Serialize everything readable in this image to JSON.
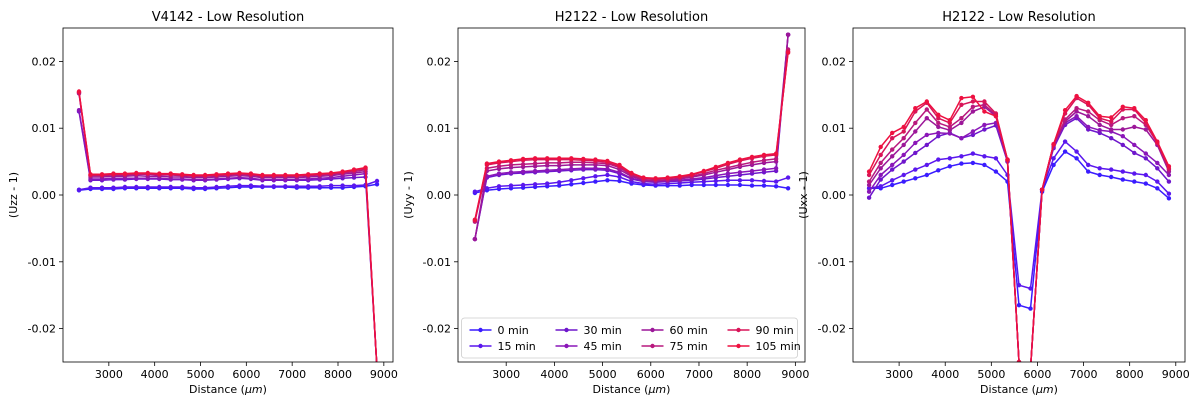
{
  "series_style": {
    "names": [
      "0 min",
      "15 min",
      "30 min",
      "45 min",
      "60 min",
      "75 min",
      "90 min",
      "105 min"
    ],
    "colors": [
      "#3a1cff",
      "#5a17ee",
      "#6e16cc",
      "#8a16b8",
      "#9c1799",
      "#b8187e",
      "#d81458",
      "#ee1040"
    ]
  },
  "chart_data": [
    {
      "type": "line",
      "title": "V4142 - Low Resolution",
      "xlabel": "Distance ($\\mu m$)",
      "ylabel": "(Uzz - 1)",
      "xlim": [
        2000,
        9200
      ],
      "ylim": [
        -0.025,
        0.025
      ],
      "xticks": [
        3000,
        4000,
        5000,
        6000,
        7000,
        8000,
        9000
      ],
      "yticks": [
        -0.02,
        -0.01,
        0.0,
        0.01,
        0.02
      ],
      "grid": false,
      "x": [
        2350,
        2600,
        2850,
        3100,
        3350,
        3600,
        3850,
        4100,
        4350,
        4600,
        4850,
        5100,
        5350,
        5600,
        5850,
        6100,
        6350,
        6600,
        6850,
        7100,
        7350,
        7600,
        7850,
        8100,
        8350,
        8600,
        8850
      ],
      "series": [
        {
          "name": "0 min",
          "values": [
            0.0007,
            0.0009,
            0.0009,
            0.0009,
            0.001,
            0.001,
            0.001,
            0.001,
            0.001,
            0.001,
            0.0009,
            0.0009,
            0.001,
            0.0011,
            0.0012,
            0.0012,
            0.0012,
            0.0012,
            0.0012,
            0.0011,
            0.0011,
            0.0011,
            0.0011,
            0.0011,
            0.0012,
            0.0013,
            0.0016
          ]
        },
        {
          "name": "15 min",
          "values": [
            0.0008,
            0.0011,
            0.0011,
            0.0011,
            0.0012,
            0.0012,
            0.0012,
            0.0012,
            0.0012,
            0.0012,
            0.0011,
            0.0011,
            0.0012,
            0.0013,
            0.0014,
            0.0014,
            0.0013,
            0.0013,
            0.0013,
            0.0013,
            0.0013,
            0.0013,
            0.0014,
            0.0014,
            0.0014,
            0.0015,
            0.0021
          ]
        },
        {
          "name": "30 min",
          "values": [
            0.0125,
            0.0022,
            0.0022,
            0.0023,
            0.0023,
            0.0024,
            0.0024,
            0.0024,
            0.0023,
            0.0023,
            0.0022,
            0.0022,
            0.0023,
            0.0024,
            0.0025,
            0.0024,
            0.0022,
            0.0022,
            0.0022,
            0.0022,
            0.0022,
            0.0023,
            0.0024,
            0.0025,
            0.0026,
            0.0027,
            -0.026
          ]
        },
        {
          "name": "45 min",
          "values": [
            0.0127,
            0.0024,
            0.0024,
            0.0025,
            0.0025,
            0.0025,
            0.0025,
            0.0025,
            0.0024,
            0.0024,
            0.0023,
            0.0023,
            0.0024,
            0.0025,
            0.0026,
            0.0025,
            0.0023,
            0.0023,
            0.0023,
            0.0023,
            0.0024,
            0.0025,
            0.0026,
            0.0028,
            0.003,
            0.0032,
            -0.026
          ]
        },
        {
          "name": "60 min",
          "values": [
            0.0152,
            0.0027,
            0.0027,
            0.0028,
            0.0028,
            0.0029,
            0.0028,
            0.0028,
            0.0027,
            0.0027,
            0.0026,
            0.0026,
            0.0027,
            0.0028,
            0.0029,
            0.0028,
            0.0026,
            0.0026,
            0.0026,
            0.0026,
            0.0027,
            0.0028,
            0.0029,
            0.0031,
            0.0033,
            0.0035,
            -0.026
          ]
        },
        {
          "name": "75 min",
          "values": [
            0.0153,
            0.0029,
            0.0029,
            0.003,
            0.003,
            0.0031,
            0.0031,
            0.003,
            0.003,
            0.0029,
            0.0028,
            0.0028,
            0.0029,
            0.003,
            0.0031,
            0.003,
            0.0028,
            0.0028,
            0.0028,
            0.0028,
            0.0029,
            0.003,
            0.0031,
            0.0033,
            0.0035,
            0.0038,
            -0.026
          ]
        },
        {
          "name": "90 min",
          "values": [
            0.0154,
            0.003,
            0.003,
            0.0031,
            0.0031,
            0.0032,
            0.0032,
            0.0031,
            0.0031,
            0.003,
            0.0029,
            0.0029,
            0.003,
            0.0031,
            0.0032,
            0.0031,
            0.0029,
            0.0029,
            0.0029,
            0.0029,
            0.003,
            0.0031,
            0.0032,
            0.0034,
            0.0037,
            0.004,
            -0.026
          ]
        },
        {
          "name": "105 min",
          "values": [
            0.0155,
            0.0031,
            0.0031,
            0.0032,
            0.0032,
            0.0033,
            0.0033,
            0.0032,
            0.0032,
            0.0031,
            0.003,
            0.003,
            0.0031,
            0.0032,
            0.0033,
            0.0032,
            0.003,
            0.003,
            0.003,
            0.003,
            0.0031,
            0.0032,
            0.0033,
            0.0035,
            0.0038,
            0.0041,
            -0.026
          ]
        }
      ]
    },
    {
      "type": "line",
      "title": "H2122 - Low Resolution",
      "xlabel": "Distance ($\\mu m$)",
      "ylabel": "(Uyy - 1)",
      "xlim": [
        2000,
        9200
      ],
      "ylim": [
        -0.025,
        0.025
      ],
      "xticks": [
        3000,
        4000,
        5000,
        6000,
        7000,
        8000,
        9000
      ],
      "yticks": [
        -0.02,
        -0.01,
        0.0,
        0.01,
        0.02
      ],
      "grid": false,
      "legend": {
        "location": "lower center",
        "columns": 4
      },
      "x": [
        2350,
        2600,
        2850,
        3100,
        3350,
        3600,
        3850,
        4100,
        4350,
        4600,
        4850,
        5100,
        5350,
        5600,
        5850,
        6100,
        6350,
        6600,
        6850,
        7100,
        7350,
        7600,
        7850,
        8100,
        8350,
        8600,
        8850
      ],
      "series": [
        {
          "name": "0 min",
          "values": [
            0.0003,
            0.0007,
            0.0009,
            0.001,
            0.0011,
            0.0012,
            0.0013,
            0.0014,
            0.0016,
            0.0018,
            0.002,
            0.0022,
            0.0021,
            0.0017,
            0.0015,
            0.0014,
            0.0014,
            0.0014,
            0.0015,
            0.0015,
            0.0015,
            0.0015,
            0.0015,
            0.0014,
            0.0014,
            0.0013,
            0.001
          ]
        },
        {
          "name": "15 min",
          "values": [
            0.0005,
            0.001,
            0.0013,
            0.0014,
            0.0015,
            0.0016,
            0.0017,
            0.0019,
            0.0022,
            0.0025,
            0.0028,
            0.003,
            0.0027,
            0.002,
            0.0017,
            0.0016,
            0.0017,
            0.0018,
            0.0019,
            0.002,
            0.0021,
            0.0022,
            0.0022,
            0.0022,
            0.0021,
            0.002,
            0.0026
          ]
        },
        {
          "name": "30 min",
          "values": [
            -0.0066,
            0.0026,
            0.003,
            0.0032,
            0.0033,
            0.0034,
            0.0035,
            0.0036,
            0.0037,
            0.0038,
            0.0038,
            0.0037,
            0.0032,
            0.0024,
            0.002,
            0.0019,
            0.002,
            0.0021,
            0.0022,
            0.0024,
            0.0026,
            0.0028,
            0.003,
            0.0032,
            0.0034,
            0.0036,
            0.024
          ]
        },
        {
          "name": "45 min",
          "values": [
            -0.0066,
            0.0028,
            0.0032,
            0.0034,
            0.0035,
            0.0036,
            0.0037,
            0.0038,
            0.0039,
            0.004,
            0.004,
            0.0039,
            0.0034,
            0.0025,
            0.0021,
            0.002,
            0.0021,
            0.0022,
            0.0024,
            0.0026,
            0.0029,
            0.0032,
            0.0034,
            0.0036,
            0.0038,
            0.004,
            0.024
          ]
        },
        {
          "name": "60 min",
          "values": [
            -0.0066,
            0.0036,
            0.0039,
            0.0041,
            0.0042,
            0.0043,
            0.0044,
            0.0044,
            0.0045,
            0.0045,
            0.0045,
            0.0044,
            0.0038,
            0.0028,
            0.0022,
            0.0021,
            0.0022,
            0.0024,
            0.0027,
            0.003,
            0.0034,
            0.0038,
            0.0042,
            0.0045,
            0.0048,
            0.005,
            0.024
          ]
        },
        {
          "name": "75 min",
          "values": [
            -0.004,
            0.004,
            0.0043,
            0.0045,
            0.0046,
            0.0047,
            0.0048,
            0.0048,
            0.0049,
            0.0049,
            0.0048,
            0.0047,
            0.0041,
            0.003,
            0.0023,
            0.0022,
            0.0023,
            0.0025,
            0.0028,
            0.0032,
            0.0037,
            0.0041,
            0.0045,
            0.0049,
            0.0052,
            0.0054,
            0.0218
          ]
        },
        {
          "name": "90 min",
          "values": [
            -0.0038,
            0.0045,
            0.0048,
            0.005,
            0.0052,
            0.0053,
            0.0053,
            0.0053,
            0.0053,
            0.0052,
            0.0051,
            0.0049,
            0.0043,
            0.0032,
            0.0025,
            0.0024,
            0.0025,
            0.0027,
            0.003,
            0.0035,
            0.004,
            0.0046,
            0.0051,
            0.0055,
            0.0058,
            0.006,
            0.0215
          ]
        },
        {
          "name": "105 min",
          "values": [
            -0.0037,
            0.0047,
            0.005,
            0.0052,
            0.0054,
            0.0055,
            0.0055,
            0.0055,
            0.0055,
            0.0054,
            0.0053,
            0.0051,
            0.0045,
            0.0033,
            0.0026,
            0.0025,
            0.0026,
            0.0028,
            0.0031,
            0.0036,
            0.0042,
            0.0048,
            0.0053,
            0.0057,
            0.006,
            0.0062,
            0.0213
          ]
        }
      ]
    },
    {
      "type": "line",
      "title": "H2122 - Low Resolution",
      "xlabel": "Distance ($\\mu m$)",
      "ylabel": "(Uxx - 1)",
      "xlim": [
        2000,
        9200
      ],
      "ylim": [
        -0.025,
        0.025
      ],
      "xticks": [
        3000,
        4000,
        5000,
        6000,
        7000,
        8000,
        9000
      ],
      "yticks": [
        -0.02,
        -0.01,
        0.0,
        0.01,
        0.02
      ],
      "grid": false,
      "x": [
        2350,
        2600,
        2850,
        3100,
        3350,
        3600,
        3850,
        4100,
        4350,
        4600,
        4850,
        5100,
        5350,
        5600,
        5850,
        6100,
        6350,
        6600,
        6850,
        7100,
        7350,
        7600,
        7850,
        8100,
        8350,
        8600,
        8850
      ],
      "series": [
        {
          "name": "0 min",
          "values": [
            0.001,
            0.001,
            0.0015,
            0.002,
            0.0025,
            0.003,
            0.0037,
            0.0043,
            0.0047,
            0.0048,
            0.0045,
            0.0035,
            0.002,
            -0.0165,
            -0.017,
            0.0005,
            0.0045,
            0.0065,
            0.0055,
            0.0035,
            0.003,
            0.0027,
            0.0023,
            0.002,
            0.0017,
            0.001,
            -0.0005
          ]
        },
        {
          "name": "15 min",
          "values": [
            0.001,
            0.0013,
            0.0022,
            0.003,
            0.0038,
            0.0045,
            0.0053,
            0.0055,
            0.0058,
            0.0062,
            0.0058,
            0.0055,
            0.003,
            -0.0135,
            -0.014,
            0.0008,
            0.0055,
            0.008,
            0.0065,
            0.0045,
            0.004,
            0.0038,
            0.0035,
            0.0032,
            0.003,
            0.002,
            0.0002
          ]
        },
        {
          "name": "30 min",
          "values": [
            -0.0004,
            0.0023,
            0.0038,
            0.005,
            0.0063,
            0.0075,
            0.0088,
            0.0093,
            0.0085,
            0.009,
            0.0098,
            0.0104,
            0.005,
            -0.025,
            -0.026,
            0.0008,
            0.007,
            0.0105,
            0.0115,
            0.0098,
            0.0093,
            0.0085,
            0.0075,
            0.0063,
            0.0055,
            0.004,
            0.002
          ]
        },
        {
          "name": "45 min",
          "values": [
            0.0005,
            0.003,
            0.0045,
            0.006,
            0.0078,
            0.009,
            0.0093,
            0.0092,
            0.0085,
            0.0095,
            0.0105,
            0.0108,
            0.005,
            -0.025,
            -0.026,
            0.0008,
            0.0072,
            0.0108,
            0.0118,
            0.0102,
            0.0097,
            0.0095,
            0.0088,
            0.0075,
            0.0062,
            0.0048,
            0.003
          ]
        },
        {
          "name": "60 min",
          "values": [
            0.0015,
            0.004,
            0.0058,
            0.0075,
            0.0095,
            0.0115,
            0.0102,
            0.0097,
            0.0108,
            0.0125,
            0.0132,
            0.0118,
            0.0052,
            -0.025,
            -0.026,
            0.0008,
            0.0075,
            0.011,
            0.0125,
            0.0118,
            0.0105,
            0.0098,
            0.0098,
            0.0102,
            0.0098,
            0.0075,
            0.0035
          ]
        },
        {
          "name": "75 min",
          "values": [
            0.002,
            0.0048,
            0.0068,
            0.0085,
            0.0108,
            0.0128,
            0.0108,
            0.0102,
            0.0115,
            0.0132,
            0.0135,
            0.012,
            0.0052,
            -0.025,
            -0.026,
            0.0008,
            0.0075,
            0.0113,
            0.013,
            0.0125,
            0.0112,
            0.0105,
            0.0115,
            0.0118,
            0.0105,
            0.0078,
            0.0038
          ]
        },
        {
          "name": "90 min",
          "values": [
            0.003,
            0.006,
            0.0085,
            0.0095,
            0.0125,
            0.0138,
            0.0115,
            0.0108,
            0.0135,
            0.014,
            0.014,
            0.0122,
            0.0053,
            -0.025,
            -0.026,
            0.0008,
            0.0076,
            0.0122,
            0.0145,
            0.0135,
            0.0115,
            0.011,
            0.0128,
            0.0128,
            0.0108,
            0.0078,
            0.004
          ]
        },
        {
          "name": "105 min",
          "values": [
            0.0035,
            0.0072,
            0.0093,
            0.0102,
            0.013,
            0.014,
            0.012,
            0.0112,
            0.0145,
            0.0147,
            0.0125,
            0.0118,
            0.0053,
            -0.025,
            -0.026,
            0.0008,
            0.0076,
            0.0127,
            0.0148,
            0.0138,
            0.0118,
            0.0116,
            0.0132,
            0.013,
            0.0112,
            0.008,
            0.0043
          ]
        }
      ]
    }
  ]
}
